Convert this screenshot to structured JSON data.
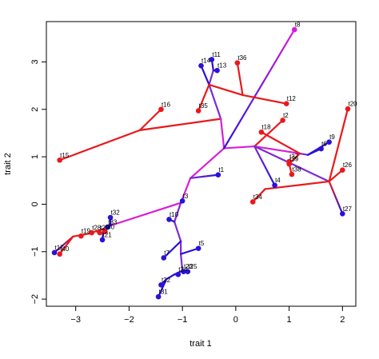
{
  "chart_data": {
    "type": "scatter",
    "subtype": "phylomorphospace",
    "title": "",
    "xlabel": "trait 1",
    "ylabel": "trait 2",
    "xlim": [
      -3.55,
      2.25
    ],
    "ylim": [
      -2.15,
      3.85
    ],
    "xticks": [
      -3,
      -2,
      -1,
      0,
      1,
      2
    ],
    "yticks": [
      -2,
      -1,
      0,
      1,
      2,
      3
    ],
    "xtick_labels": [
      "−3",
      "−2",
      "−1",
      "0",
      "1",
      "2"
    ],
    "ytick_labels": [
      "−2",
      "−1",
      "0",
      "1",
      "2",
      "3"
    ],
    "colors": {
      "red": "#e8191c",
      "magenta": "#d71ed8",
      "purple": "#7a2bd4",
      "blue": "#2a12d8"
    },
    "nodes": {
      "r": [
        -0.28,
        1.8
      ],
      "a1": [
        -0.5,
        2.52
      ],
      "a2": [
        -0.42,
        2.82
      ],
      "a3": [
        0.13,
        2.3
      ],
      "b1": [
        -1.8,
        1.56
      ],
      "c1": [
        -0.22,
        1.18
      ],
      "c2": [
        0.35,
        1.22
      ],
      "c3": [
        1.2,
        1.07
      ],
      "c4": [
        1.35,
        1.04
      ],
      "c5": [
        1.0,
        0.85
      ],
      "c6": [
        1.75,
        0.48
      ],
      "c7": [
        0.55,
        0.32
      ],
      "d1": [
        -0.85,
        0.55
      ],
      "d2": [
        -1.03,
        0.03
      ],
      "d3": [
        -1.15,
        -0.37
      ],
      "d4": [
        -1.03,
        -0.78
      ],
      "d5": [
        -1.03,
        -1.05
      ],
      "d6": [
        -1.0,
        -1.4
      ],
      "d7": [
        -1.15,
        -1.48
      ],
      "d8": [
        -1.3,
        -1.58
      ],
      "d9": [
        -2.35,
        -0.45
      ],
      "d10": [
        -2.48,
        -0.52
      ],
      "d11": [
        -2.62,
        -0.57
      ],
      "d12": [
        -2.75,
        -0.62
      ],
      "d13": [
        -2.85,
        -0.64
      ],
      "d14": [
        -3.05,
        -0.68
      ]
    },
    "edges": [
      {
        "from": "r",
        "to": "a1",
        "color": "purple"
      },
      {
        "from": "a1",
        "to": "a2",
        "color": "purple"
      },
      {
        "from": "a1",
        "to": "a3",
        "color": "red"
      },
      {
        "from": "r",
        "to": "b1",
        "color": "red"
      },
      {
        "from": "r",
        "to": "c1",
        "color": "magenta"
      },
      {
        "from": "c1",
        "to": "c2",
        "color": "magenta"
      },
      {
        "from": "c2",
        "to": "c3",
        "color": "magenta"
      },
      {
        "from": "c3",
        "to": "c4",
        "color": "purple"
      },
      {
        "from": "c3",
        "to": "c5",
        "color": "red"
      },
      {
        "from": "c2",
        "to": "c6",
        "color": "purple"
      },
      {
        "from": "c6",
        "to": "c7",
        "color": "red"
      },
      {
        "from": "c1",
        "to": "d1",
        "color": "magenta"
      },
      {
        "from": "d1",
        "to": "d2",
        "color": "magenta"
      },
      {
        "from": "d2",
        "to": "d3",
        "color": "purple"
      },
      {
        "from": "d3",
        "to": "d4",
        "color": "purple"
      },
      {
        "from": "d4",
        "to": "d5",
        "color": "purple"
      },
      {
        "from": "d5",
        "to": "d6",
        "color": "purple"
      },
      {
        "from": "d6",
        "to": "d7",
        "color": "blue"
      },
      {
        "from": "d7",
        "to": "d8",
        "color": "blue"
      },
      {
        "from": "d2",
        "to": "d9",
        "color": "magenta"
      },
      {
        "from": "d9",
        "to": "d10",
        "color": "purple"
      },
      {
        "from": "d10",
        "to": "d11",
        "color": "red"
      },
      {
        "from": "d11",
        "to": "d12",
        "color": "red"
      },
      {
        "from": "d12",
        "to": "d13",
        "color": "red"
      },
      {
        "from": "d13",
        "to": "d14",
        "color": "red"
      }
    ],
    "tips": [
      {
        "label": "t1",
        "x": -0.33,
        "y": 0.62,
        "parent": "d1",
        "color": "blue",
        "color_to": "purple"
      },
      {
        "label": "t2",
        "x": 0.88,
        "y": 1.77,
        "parent": "c2",
        "color": "red"
      },
      {
        "label": "t3",
        "x": -1.0,
        "y": 0.07,
        "parent": "d2",
        "color": "blue"
      },
      {
        "label": "t4",
        "x": 0.73,
        "y": 0.4,
        "parent": "c2",
        "color": "blue",
        "color_to": "purple"
      },
      {
        "label": "t5",
        "x": -0.7,
        "y": -0.93,
        "parent": "d5",
        "color": "blue"
      },
      {
        "label": "t6",
        "x": 1.6,
        "y": 1.17,
        "parent": "c4",
        "color": "blue"
      },
      {
        "label": "t7",
        "x": -1.35,
        "y": -1.13,
        "parent": "d4",
        "color": "blue"
      },
      {
        "label": "t8",
        "x": 1.1,
        "y": 3.68,
        "parent": "c1",
        "color": "magenta",
        "color_to": "blue"
      },
      {
        "label": "t9",
        "x": 1.75,
        "y": 1.31,
        "parent": "c4",
        "color": "blue"
      },
      {
        "label": "t10",
        "x": -1.25,
        "y": -0.32,
        "parent": "d3",
        "color": "blue"
      },
      {
        "label": "t11",
        "x": -0.45,
        "y": 3.05,
        "parent": "a2",
        "color": "blue"
      },
      {
        "label": "t12",
        "x": 0.95,
        "y": 2.12,
        "parent": "a3",
        "color": "red"
      },
      {
        "label": "t13",
        "x": -0.35,
        "y": 2.82,
        "parent": "a2",
        "color": "blue"
      },
      {
        "label": "t14",
        "x": -0.65,
        "y": 2.92,
        "parent": "a1",
        "color": "blue"
      },
      {
        "label": "t15",
        "x": -3.3,
        "y": 0.93,
        "parent": "b1",
        "color": "red"
      },
      {
        "label": "t16",
        "x": -1.4,
        "y": 2.0,
        "parent": "b1",
        "color": "red"
      },
      {
        "label": "t17",
        "x": -3.4,
        "y": -1.02,
        "parent": "d14",
        "color": "blue",
        "color_to": "red"
      },
      {
        "label": "t18",
        "x": 0.48,
        "y": 1.52,
        "parent": "c3",
        "color": "red"
      },
      {
        "label": "t19",
        "x": -2.9,
        "y": -0.67,
        "parent": "d13",
        "color": "red"
      },
      {
        "label": "t20",
        "x": 2.1,
        "y": 2.01,
        "parent": "c6",
        "color": "red"
      },
      {
        "label": "t21",
        "x": -2.5,
        "y": -0.75,
        "parent": "d10",
        "color": "blue"
      },
      {
        "label": "t22",
        "x": -1.4,
        "y": -1.7,
        "parent": "d8",
        "color": "blue"
      },
      {
        "label": "t23",
        "x": -0.98,
        "y": -1.42,
        "parent": "d6",
        "color": "blue"
      },
      {
        "label": "t24",
        "x": -1.08,
        "y": -1.48,
        "parent": "d7",
        "color": "blue"
      },
      {
        "label": "t25",
        "x": -0.9,
        "y": -1.42,
        "parent": "d6",
        "color": "blue"
      },
      {
        "label": "t26",
        "x": 2.0,
        "y": 0.72,
        "parent": "c6",
        "color": "red"
      },
      {
        "label": "t27",
        "x": 2.0,
        "y": -0.2,
        "parent": "c6",
        "color": "blue",
        "color_to": "red"
      },
      {
        "label": "t28",
        "x": -2.7,
        "y": -0.6,
        "parent": "d12",
        "color": "red"
      },
      {
        "label": "t29",
        "x": -2.55,
        "y": -0.6,
        "parent": "d11",
        "color": "red"
      },
      {
        "label": "t30",
        "x": -2.45,
        "y": -0.58,
        "parent": "d10",
        "color": "red"
      },
      {
        "label": "t31",
        "x": -1.45,
        "y": -1.95,
        "parent": "d8",
        "color": "blue"
      },
      {
        "label": "t32",
        "x": -2.35,
        "y": -0.28,
        "parent": "d9",
        "color": "blue"
      },
      {
        "label": "t33",
        "x": -2.4,
        "y": -0.48,
        "parent": "d9",
        "color": "blue"
      },
      {
        "label": "t34",
        "x": 0.32,
        "y": 0.05,
        "parent": "c7",
        "color": "red"
      },
      {
        "label": "t35",
        "x": -0.7,
        "y": 1.97,
        "parent": "a1",
        "color": "red"
      },
      {
        "label": "t36",
        "x": 0.03,
        "y": 2.98,
        "parent": "a3",
        "color": "red"
      },
      {
        "label": "t37",
        "x": 1.0,
        "y": 0.9,
        "parent": "c5",
        "color": "red"
      },
      {
        "label": "t38",
        "x": 1.05,
        "y": 0.63,
        "parent": "c5",
        "color": "red"
      },
      {
        "label": "t39",
        "x": 1.0,
        "y": 0.85,
        "parent": "c5",
        "color": "red"
      },
      {
        "label": "t40",
        "x": -3.3,
        "y": -1.05,
        "parent": "d14",
        "color": "red"
      }
    ],
    "legend": "none",
    "grid": false
  }
}
